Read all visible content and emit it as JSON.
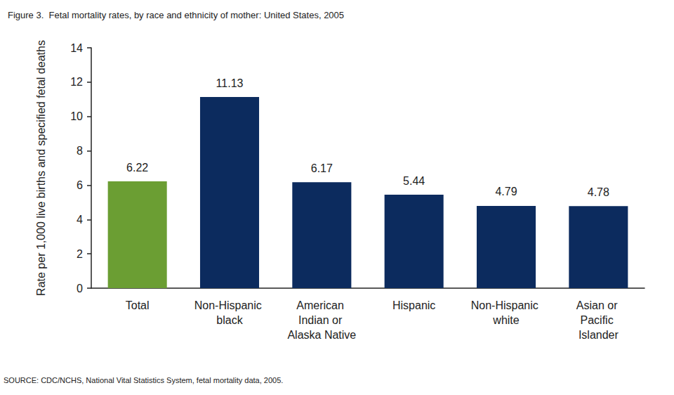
{
  "chart_data": {
    "type": "bar",
    "title": "Figure 3.  Fetal mortality rates, by race and ethnicity of mother: United States, 2005",
    "y_label": "Rate per 1,000 live births and specified fetal deaths",
    "source": "SOURCE: CDC/NCHS, National Vital Statistics System, fetal mortality data, 2005.",
    "categories": [
      "Total",
      "Non-Hispanic black",
      "American Indian or Alaska Native",
      "Hispanic",
      "Non-Hispanic white",
      "Asian or Pacific Islander"
    ],
    "values": [
      6.22,
      11.13,
      6.17,
      5.44,
      4.79,
      4.78
    ],
    "colors": [
      "#6b9e33",
      "#0c2b5e",
      "#0c2b5e",
      "#0c2b5e",
      "#0c2b5e",
      "#0c2b5e"
    ],
    "ylim": [
      0,
      14
    ],
    "yticks": [
      0,
      2,
      4,
      6,
      8,
      10,
      12,
      14
    ],
    "grid": false,
    "data_labels": true
  }
}
